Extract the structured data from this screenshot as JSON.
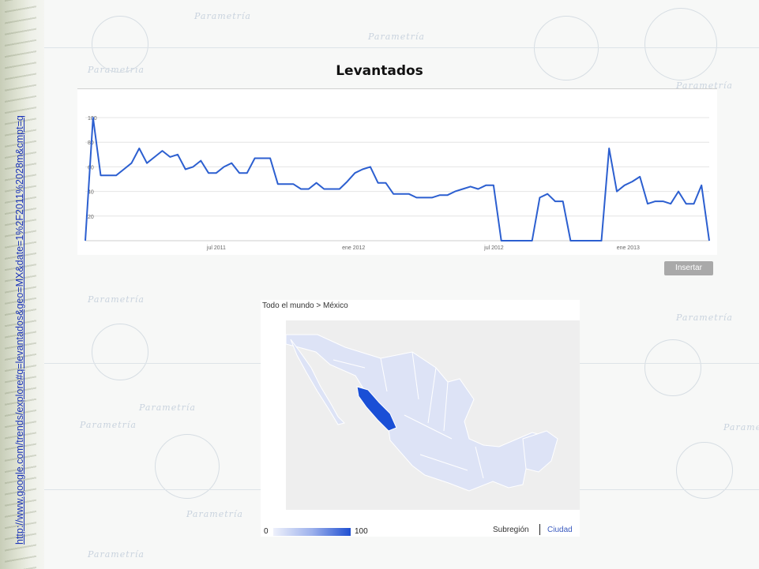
{
  "slide": {
    "title": "Levantados",
    "side_link": "http://www.google.com/trends/explore#q=levantados&geo=MX&date=1%2F2011%2028m&cmpt=q",
    "watermark_word": "Parametría"
  },
  "trend_chart": {
    "insert_button": "Insertar",
    "x_tick_labels": [
      "jul 2011",
      "ene 2012",
      "jul 2012",
      "ene 2013"
    ],
    "y_tick_labels": [
      "100",
      "80",
      "60",
      "40",
      "20"
    ]
  },
  "map": {
    "breadcrumb": "Todo el mundo > México",
    "legend_min": "0",
    "legend_max": "100",
    "subregion_label": "Subregión",
    "city_label": "Ciudad",
    "highlight_color": "#1a4fd6",
    "base_color": "#dde3f6"
  },
  "chart_data": {
    "type": "line",
    "title": "Levantados",
    "xlabel": "",
    "ylabel": "",
    "ylim": [
      0,
      100
    ],
    "x_ticks": [
      "jul 2011",
      "ene 2012",
      "jul 2012",
      "ene 2013"
    ],
    "y_ticks": [
      20,
      40,
      60,
      80,
      100
    ],
    "grid": true,
    "series": [
      {
        "color": "#2c5fd0",
        "values": [
          0,
          100,
          53,
          53,
          53,
          58,
          63,
          75,
          63,
          68,
          73,
          68,
          70,
          58,
          60,
          65,
          55,
          55,
          60,
          63,
          55,
          55,
          67,
          67,
          67,
          46,
          46,
          46,
          42,
          42,
          47,
          42,
          42,
          42,
          48,
          55,
          58,
          60,
          47,
          47,
          38,
          38,
          38,
          35,
          35,
          35,
          37,
          37,
          40,
          42,
          44,
          42,
          45,
          45,
          0,
          0,
          0,
          0,
          0,
          35,
          38,
          32,
          32,
          0,
          0,
          0,
          0,
          0,
          75,
          40,
          45,
          48,
          52,
          30,
          32,
          32,
          30,
          40,
          30,
          30,
          45,
          0
        ]
      }
    ]
  }
}
